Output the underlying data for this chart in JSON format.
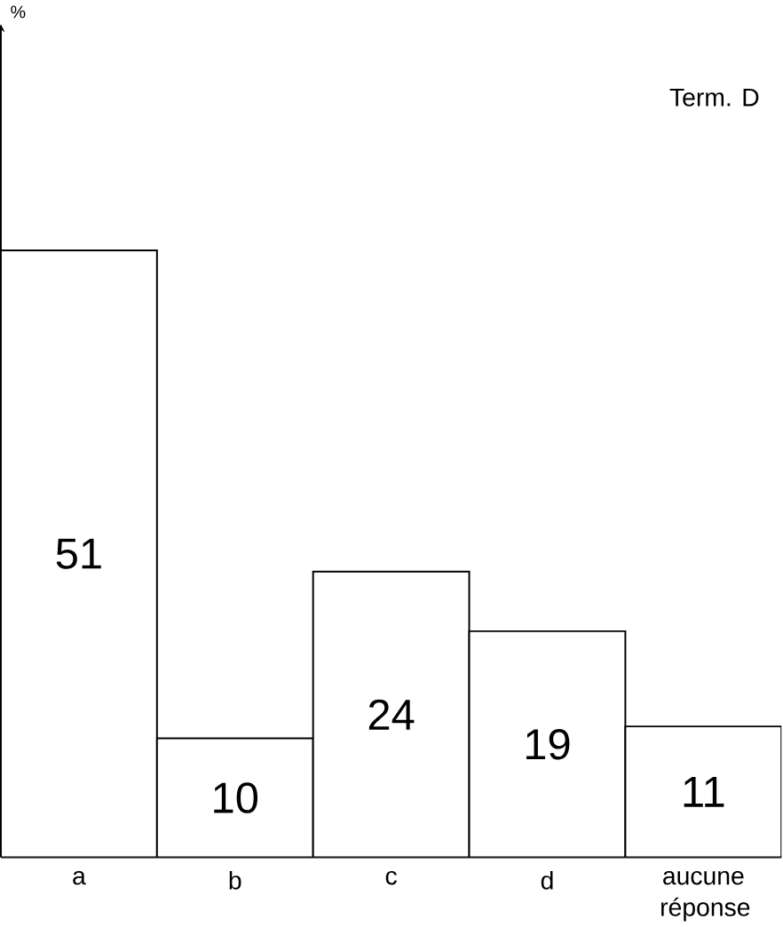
{
  "chart_data": {
    "type": "bar",
    "ylabel": "%",
    "categories": [
      "a",
      "b",
      "c",
      "d",
      "aucune réponse"
    ],
    "values": [
      51,
      10,
      24,
      19,
      11
    ],
    "color": "#ffffff",
    "ylim": [
      0,
      70
    ],
    "data_labels": true,
    "annotations": [
      "Term. D"
    ]
  }
}
